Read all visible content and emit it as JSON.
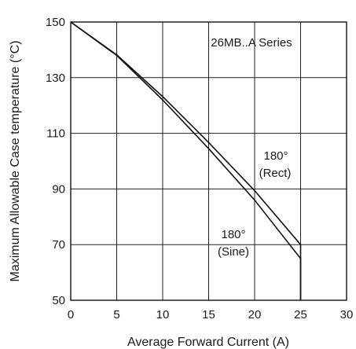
{
  "chart_data": {
    "type": "line",
    "title": "",
    "xlabel": "Average Forward Current (A)",
    "ylabel": "Maximum Allowable Case temperature (°C)",
    "xlim": [
      0,
      30
    ],
    "ylim": [
      50,
      150
    ],
    "x_ticks": [
      "0",
      "5",
      "10",
      "15",
      "20",
      "25",
      "30"
    ],
    "y_ticks": [
      "50",
      "70",
      "90",
      "110",
      "130",
      "150"
    ],
    "grid": true,
    "annotations": {
      "series_label": "26MB..A Series",
      "rect_label_1": "180°",
      "rect_label_2": "(Rect)",
      "sine_label_1": "180°",
      "sine_label_2": "(Sine)"
    },
    "series": [
      {
        "label": "180° (Rect)",
        "points": [
          [
            0,
            150
          ],
          [
            5,
            138.2
          ],
          [
            10,
            123.2
          ],
          [
            15,
            106.7
          ],
          [
            20,
            89.4
          ],
          [
            25,
            70
          ],
          [
            25,
            50
          ]
        ]
      },
      {
        "label": "180° (Sine)",
        "points": [
          [
            0,
            150
          ],
          [
            5,
            138
          ],
          [
            10,
            122
          ],
          [
            15,
            104.5
          ],
          [
            20,
            86
          ],
          [
            25,
            65
          ],
          [
            25,
            50
          ]
        ]
      }
    ]
  }
}
